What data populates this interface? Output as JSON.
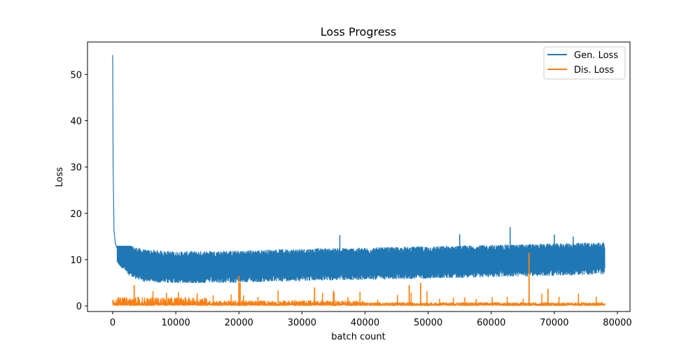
{
  "chart_data": {
    "type": "line",
    "title": "Loss Progress",
    "xlabel": "batch count",
    "ylabel": "Loss",
    "xlim": [
      -4000,
      82000
    ],
    "ylim": [
      -1.2,
      57
    ],
    "xticks": [
      0,
      10000,
      20000,
      30000,
      40000,
      50000,
      60000,
      70000,
      80000
    ],
    "xtick_labels": [
      "0",
      "10000",
      "20000",
      "30000",
      "40000",
      "50000",
      "60000",
      "70000",
      "80000"
    ],
    "yticks": [
      0,
      10,
      20,
      30,
      40,
      50
    ],
    "ytick_labels": [
      "0",
      "10",
      "20",
      "30",
      "40",
      "50"
    ],
    "grid": false,
    "legend_position": "top-right",
    "series": [
      {
        "name": "Gen. Loss",
        "color": "#1f77b4",
        "points": [
          [
            0,
            54.2
          ],
          [
            60,
            30
          ],
          [
            120,
            25
          ],
          [
            200,
            16.5
          ],
          [
            400,
            13.5
          ],
          [
            700,
            12.5
          ],
          [
            1500,
            11.5
          ],
          [
            3000,
            9.5
          ],
          [
            5000,
            8.7
          ],
          [
            10000,
            8.3
          ],
          [
            20000,
            8.5
          ],
          [
            30000,
            8.9
          ],
          [
            40000,
            9.1
          ],
          [
            50000,
            9.4
          ],
          [
            60000,
            9.7
          ],
          [
            70000,
            10.0
          ],
          [
            78000,
            10.3
          ]
        ],
        "band_low": 5.0,
        "band_high": 13.0,
        "spikes": [
          [
            36000,
            15.3
          ],
          [
            55000,
            15.5
          ],
          [
            63000,
            17.0
          ],
          [
            70000,
            15.4
          ],
          [
            73000,
            15.0
          ]
        ]
      },
      {
        "name": "Dis. Loss",
        "color": "#ff7f0e",
        "base": 0.3,
        "spikes": [
          [
            3400,
            4.5
          ],
          [
            20000,
            6.5
          ],
          [
            20200,
            5.0
          ],
          [
            32000,
            4.0
          ],
          [
            35000,
            3.3
          ],
          [
            47000,
            4.5
          ],
          [
            48800,
            5.0
          ],
          [
            66000,
            11.5
          ],
          [
            69000,
            3.7
          ]
        ]
      }
    ]
  }
}
